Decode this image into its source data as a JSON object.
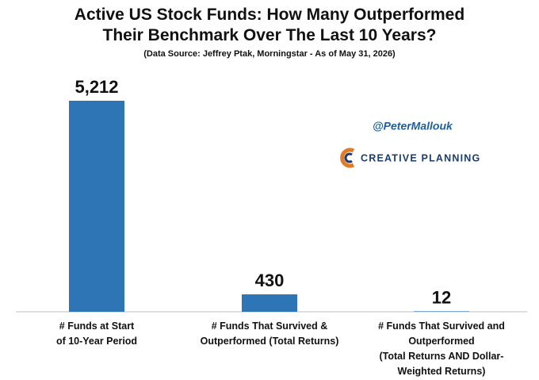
{
  "chart_data": {
    "type": "bar",
    "title": "Active US Stock Funds: How Many Outperformed\nTheir Benchmark Over The Last 10 Years?",
    "subtitle": "(Data Source: Jeffrey Ptak, Morningstar - As of May 31, 2026)",
    "categories": [
      "# Funds at Start\nof 10-Year Period",
      "# Funds That Survived &\nOutperformed (Total Returns)",
      "# Funds That Survived and\nOutperformed\n(Total Returns AND Dollar-\nWeighted Returns)"
    ],
    "values": [
      5212,
      430,
      12
    ],
    "value_labels": [
      "5,212",
      "430",
      "12"
    ],
    "color": "#2e75b6",
    "annotations": [
      "@PeterMallouk",
      "CREATIVE PLANNING"
    ]
  }
}
